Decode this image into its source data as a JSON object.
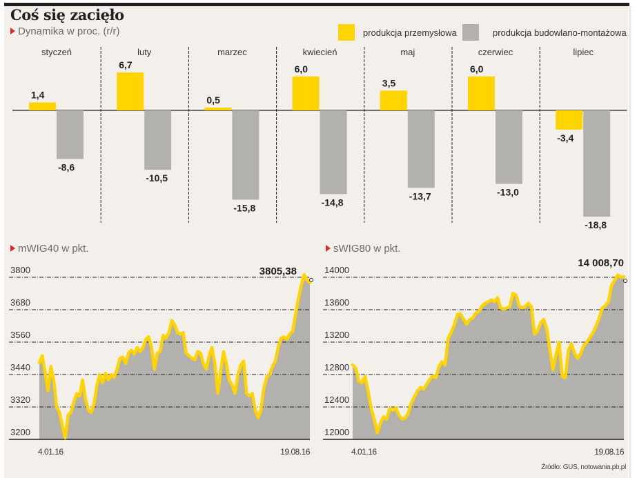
{
  "header": {
    "title": "Coś się zacięło",
    "subtitle": "Dynamika w proc. (r/r)"
  },
  "colors": {
    "yellow": "#ffd400",
    "gray": "#b2b1ad",
    "background": "#f3f0eb",
    "accent_red": "#e0252b"
  },
  "legend": [
    {
      "label": "produkcja przemysłowa",
      "color": "#ffd400"
    },
    {
      "label": "produkcja budowlano-montażowa",
      "color": "#b2b1ad"
    }
  ],
  "source": "Źródło: GUS, notowania.pb.pl",
  "chart_data": [
    {
      "type": "bar",
      "title": "Dynamika w proc. (r/r)",
      "categories": [
        "styczeń",
        "luty",
        "marzec",
        "kwiecień",
        "maj",
        "czerwiec",
        "lipiec"
      ],
      "series": [
        {
          "name": "produkcja przemysłowa",
          "values": [
            1.4,
            6.7,
            0.5,
            6.0,
            3.5,
            6.0,
            -3.4
          ],
          "labels": [
            "1,4",
            "6,7",
            "0,5",
            "6,0",
            "3,5",
            "6,0",
            "-3,4"
          ]
        },
        {
          "name": "produkcja budowlano-montażowa",
          "values": [
            -8.6,
            -10.5,
            -15.8,
            -14.8,
            -13.7,
            -13.0,
            -18.8
          ],
          "labels": [
            "-8,6",
            "-10,5",
            "-15,8",
            "-14,8",
            "-13,7",
            "-13,0",
            "-18,8"
          ]
        }
      ],
      "ylim": [
        -19.5,
        8
      ],
      "legend": "top-right",
      "grid": false
    },
    {
      "type": "area",
      "title": "mWIG40 w pkt.",
      "yticks": [
        3200,
        3320,
        3440,
        3560,
        3680,
        3800
      ],
      "ylim": [
        3200,
        3820
      ],
      "x_labels": [
        "4.01.16",
        "19.08.16"
      ],
      "last_value_label": "3805,38",
      "last_value": 3805.38,
      "grid": true,
      "values": [
        3484,
        3510,
        3450,
        3380,
        3470,
        3420,
        3320,
        3300,
        3250,
        3205,
        3290,
        3300,
        3340,
        3370,
        3360,
        3420,
        3350,
        3310,
        3300,
        3330,
        3400,
        3440,
        3410,
        3445,
        3420,
        3440,
        3430,
        3460,
        3500,
        3505,
        3480,
        3520,
        3530,
        3515,
        3540,
        3525,
        3540,
        3570,
        3580,
        3540,
        3460,
        3520,
        3525,
        3585,
        3575,
        3595,
        3640,
        3625,
        3595,
        3590,
        3595,
        3520,
        3510,
        3500,
        3495,
        3525,
        3520,
        3480,
        3460,
        3510,
        3540,
        3480,
        3370,
        3450,
        3525,
        3480,
        3420,
        3400,
        3370,
        3440,
        3475,
        3490,
        3370,
        3360,
        3370,
        3310,
        3280,
        3310,
        3390,
        3430,
        3440,
        3470,
        3490,
        3540,
        3575,
        3580,
        3570,
        3590,
        3600,
        3660,
        3720,
        3770,
        3810,
        3790,
        3780
      ]
    },
    {
      "type": "area",
      "title": "sWIG80 w pkt.",
      "yticks": [
        12000,
        12400,
        12800,
        13200,
        13600,
        14000
      ],
      "ylim": [
        12000,
        14080
      ],
      "x_labels": [
        "4.01.16",
        "19.08.16"
      ],
      "last_value_label": "14 008,70",
      "last_value": 14008.7,
      "grid": true,
      "values": [
        12920,
        12880,
        12720,
        12700,
        12780,
        12600,
        12380,
        12250,
        12080,
        12200,
        12280,
        12250,
        12380,
        12360,
        12390,
        12300,
        12250,
        12260,
        12320,
        12450,
        12520,
        12600,
        12640,
        12620,
        12680,
        12740,
        12780,
        12760,
        12900,
        12960,
        12920,
        13250,
        13320,
        13420,
        13540,
        13550,
        13480,
        13420,
        13480,
        13500,
        13560,
        13580,
        13650,
        13680,
        13700,
        13720,
        13700,
        13750,
        13620,
        13610,
        13620,
        13640,
        13800,
        13780,
        13650,
        13620,
        13640,
        13680,
        13640,
        13300,
        13340,
        13440,
        13480,
        13360,
        13100,
        12860,
        13050,
        13200,
        12780,
        12760,
        13100,
        13180,
        13060,
        13000,
        13060,
        13160,
        13200,
        13260,
        13320,
        13400,
        13500,
        13620,
        13650,
        13700,
        13900,
        13960,
        14030,
        14000,
        14008
      ]
    }
  ]
}
